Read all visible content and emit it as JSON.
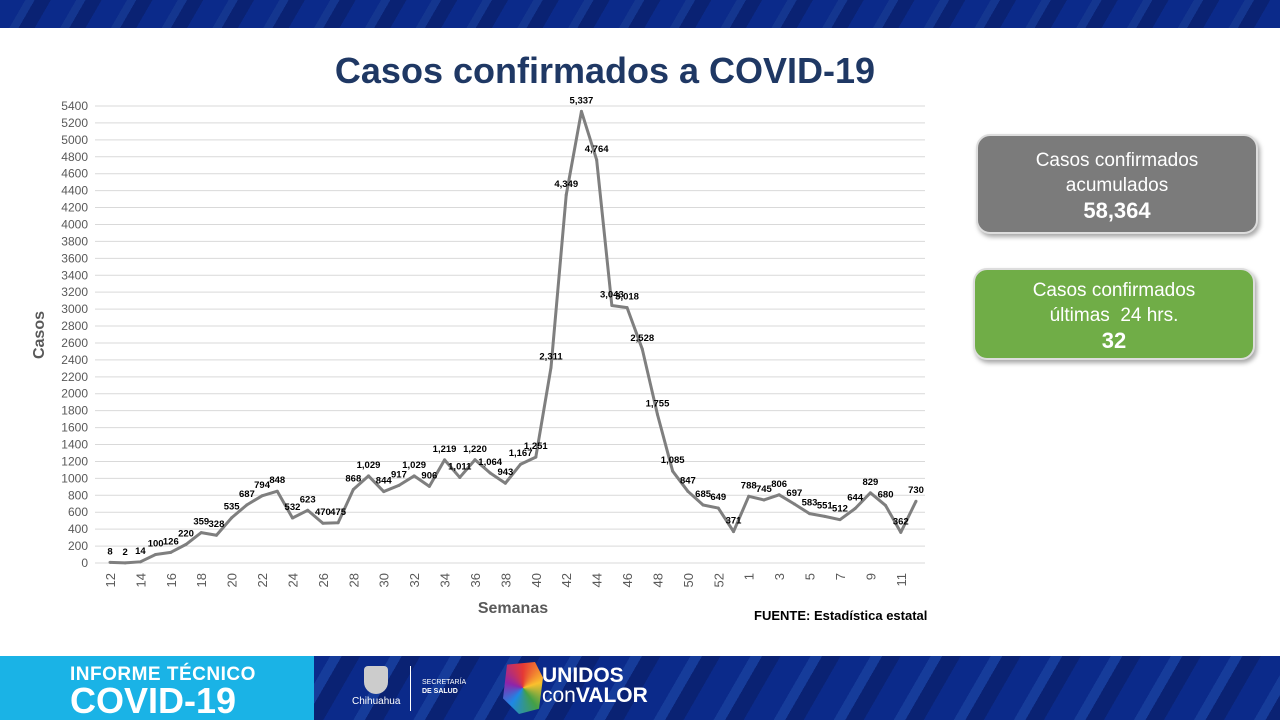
{
  "title": "Casos confirmados a COVID-19",
  "chart_data": {
    "type": "line",
    "title": "Casos confirmados a COVID-19",
    "xlabel": "Semanas",
    "ylabel": "Casos",
    "ylim": [
      0,
      5400
    ],
    "ytick_step": 200,
    "grid": true,
    "line_color": "#7f7f7f",
    "x": [
      "12",
      "13",
      "14",
      "15",
      "16",
      "17",
      "18",
      "19",
      "20",
      "21",
      "22",
      "23",
      "24",
      "25",
      "26",
      "27",
      "28",
      "29",
      "30",
      "31",
      "32",
      "33",
      "34",
      "35",
      "36",
      "37",
      "38",
      "39",
      "40",
      "41",
      "42",
      "43",
      "44",
      "45",
      "46",
      "47",
      "48",
      "49",
      "50",
      "51",
      "52",
      "53",
      "1",
      "2",
      "3",
      "4",
      "5",
      "6",
      "7",
      "8",
      "9",
      "10",
      "11",
      "12"
    ],
    "xtick_labels_shown_every": 2,
    "values": [
      8,
      2,
      14,
      100,
      126,
      220,
      359,
      328,
      535,
      687,
      794,
      848,
      532,
      623,
      470,
      475,
      868,
      1029,
      844,
      917,
      1029,
      906,
      1219,
      1011,
      1220,
      1064,
      943,
      1167,
      1251,
      2311,
      4349,
      5337,
      4764,
      3043,
      3018,
      2528,
      1755,
      1085,
      847,
      685,
      649,
      371,
      788,
      745,
      806,
      697,
      583,
      551,
      512,
      644,
      829,
      680,
      362,
      730
    ]
  },
  "cards": [
    {
      "label1": "Casos confirmados",
      "label2": "acumulados",
      "value": "58,364",
      "color": "#7b7b7b"
    },
    {
      "label1": "Casos confirmados",
      "label2": "últimas  24 hrs.",
      "value": "32",
      "color": "#70ad47"
    }
  ],
  "source": "FUENTE: Estadística estatal",
  "footer": {
    "line1": "INFORME TÉCNICO",
    "line2": "COVID-19",
    "gov": "Chihuahua",
    "sec1": "SECRETARÍA",
    "sec2": "DE SALUD",
    "slogan1": "UNIDOS",
    "slogan2a": "con",
    "slogan2b": "VALOR"
  }
}
